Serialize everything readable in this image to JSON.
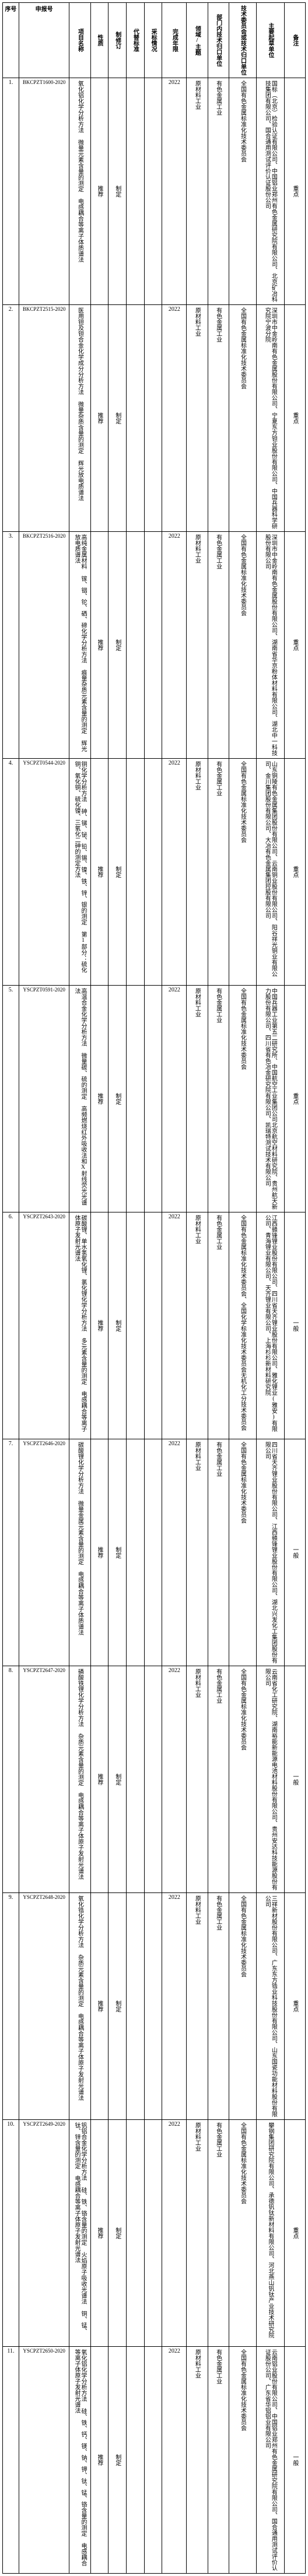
{
  "headers": {
    "seq": "序号",
    "code": "申报号",
    "name": "项目名称",
    "nature": "性质",
    "type": "制修订",
    "replace": "代替标准",
    "adopt": "采标情况",
    "year": "完成年限",
    "domain": "领域/主题",
    "dept": "部门内技术归口单位",
    "tech": "技术委员会或技术归口单位",
    "unit": "主要起草单位",
    "note": "备注"
  },
  "rows": [
    {
      "seq": "1.",
      "code": "BKCPZT1600-2020",
      "name": "氧化铝化学分析方法 微量元素含量的测定 电感耦合等离子体质谱法",
      "nature": "推荐",
      "type": "制定",
      "replace": "",
      "adopt": "",
      "year": "2022",
      "domain": "原材料工业",
      "dept": "有色金属工业",
      "tech": "全国有色金属标准化技术委员会",
      "unit": "国标（北京）检验认证有限公司、中国铝业郑州有色金属研究院有限公司、北京矿冶科技集团有限公司、国合通用测试评价认证股份公司",
      "note": "重点"
    },
    {
      "seq": "2.",
      "code": "BKCPZT2515-2020",
      "name": "医用钽及钽合金化学成分分析方法 微量杂质含量的测定 辉光放电质谱法",
      "nature": "推荐",
      "type": "制定",
      "replace": "",
      "adopt": "",
      "year": "2022",
      "domain": "原材料工业",
      "dept": "有色金属工业",
      "tech": "全国有色金属标准化技术委员会",
      "unit": "深圳市中金岭南有色金属股份有限公司、宁夏东方钽业股份有限公司、中国兵器科学研究院宁波分院",
      "note": "重点"
    },
    {
      "seq": "3.",
      "code": "BKCPZT2516-2020",
      "name": "高纯金属材料 镓、铟、铊、硒、碲化学分析方法 痕量杂质元素含量的测定 辉光放电质谱法",
      "nature": "推荐",
      "type": "制定",
      "replace": "",
      "adopt": "",
      "year": "2022",
      "domain": "原材料工业",
      "dept": "有色金属工业",
      "tech": "全国有色金属标准化技术委员会",
      "unit": "深圳市中金岭南有色金属股份有限公司、湖南省华京粉体材料有限公司、湖北中一科技股份有限公司",
      "note": "重点"
    },
    {
      "seq": "4.",
      "code": "YSCPZT0544-2020",
      "name": "铜化学分析方法 砷、锑、铋、铅、锡、镍、铁、锌、银的测定 第1部分：硫化铜、氧化铜、硫化镍、三氧化二砷的测定方法",
      "nature": "推荐",
      "type": "制定",
      "replace": "",
      "adopt": "",
      "year": "2022",
      "domain": "原材料工业",
      "dept": "有色金属工业",
      "tech": "全国有色金属标准化技术委员会",
      "unit": "山东铜陵有色金属集团股份有限公司、云南铜业股份有限公司、阳谷祥光铜业有限公司、金川集团股份有限公司、大冶有色金属集团控股有限公司",
      "note": "重点"
    },
    {
      "seq": "5.",
      "code": "YSCPZT0591-2020",
      "name": "高温合金化学分析方法 微量碳、硫的测定 高频燃烧红外吸收法和X射线荧光光谱法",
      "nature": "推荐",
      "type": "制定",
      "replace": "",
      "adopt": "",
      "year": "2022",
      "domain": "原材料工业",
      "dept": "有色金属工业",
      "tech": "全国有色金属标准化技术委员会",
      "unit": "中国兵器工业第五二研究所、中国航空工业集团公司北京航空材料研究院、贵州航天新力股份有限公司、四川省有色冶金研究院有限公司、凯瑞特测试技术有限公司",
      "note": "重点"
    },
    {
      "seq": "6.",
      "code": "YSCPZT2643-2020",
      "name": "碳酸锂、单水氢氧化锂、氯化锂化学分析方法 多元素含量的测定 电感耦合等离子体原子发射光谱法",
      "nature": "推荐",
      "type": "制定",
      "replace": "",
      "adopt": "",
      "year": "2022",
      "domain": "原材料工业",
      "dept": "有色金属工业",
      "tech": "全国有色金属标准化技术委员会、全国化学标准化技术委员会无机化工分技术委员会",
      "unit": "江西赣锋锂业股份有限公司、四川省天齐锂业股份有限公司、雅化锂业(雅安)有限公司、青海锂业有限公司、天齐锂业有限公司、上海杉杉新材料研究院",
      "note": "一般"
    },
    {
      "seq": "7.",
      "code": "YSCPZT2646-2020",
      "name": "碳酸锂化学分析方法 微量金属元素含量的测定 电感耦合等离子体质谱法",
      "nature": "推荐",
      "type": "制定",
      "replace": "",
      "adopt": "",
      "year": "2022",
      "domain": "原材料工业",
      "dept": "有色金属工业",
      "tech": "全国有色金属标准化技术委员会",
      "unit": "四川省天齐锂业股份有限公司、江西赣锋锂业股份有限公司、湖北兴发化工集团股份有限公司",
      "note": "一般"
    },
    {
      "seq": "8.",
      "code": "YSCPZT2647-2020",
      "name": "磷酸铁锂化学分析方法 杂质元素含量的测定 电感耦合等离子体原子发射光谱法",
      "nature": "推荐",
      "type": "制定",
      "replace": "",
      "adopt": "",
      "year": "2022",
      "domain": "原材料工业",
      "dept": "有色金属工业",
      "tech": "全国有色金属标准化技术委员会",
      "unit": "云南省化工研究院、湖南裕能新能源电池材料股份有限公司、贵州安达科技能源股份有限公司",
      "note": "一般"
    },
    {
      "seq": "9.",
      "code": "YSCPZT2648-2020",
      "name": "氧化锆化学分析方法 杂质元素含量的测定 电感耦合等离子体原子发射光谱法",
      "nature": "推荐",
      "type": "制定",
      "replace": "",
      "adopt": "",
      "year": "2022",
      "domain": "原材料工业",
      "dept": "有色金属工业",
      "tech": "全国有色金属标准化技术委员会",
      "unit": "三祥新材股份有限公司、广东东方锆业科技股份有限公司、山东国瓷功能材料股份有限公司",
      "note": "重点"
    },
    {
      "seq": "10.",
      "code": "YSCPZT2649-2020",
      "name": "钒铝合金化学分析方法 硅、铁、铬含量的测定 火焰原子吸收光谱法 铜、锰、钛、锌含量的测定 电感耦合等离子体原子发射光谱法",
      "nature": "推荐",
      "type": "制定",
      "replace": "",
      "adopt": "",
      "year": "2022",
      "domain": "原材料工业",
      "dept": "有色金属工业",
      "tech": "全国有色金属标准化技术委员会",
      "unit": "攀钢集团研究院有限公司、承德钒钛新材料有限公司、河北燕山钒钛产业技术研究院",
      "note": "重点"
    },
    {
      "seq": "11.",
      "code": "YSCPZT2650-2020",
      "name": "氧化铝化学分析方法 硅、铁、钙、镁、钠、钾、钛、锰、铬含量的测定 电感耦合等离子体原子发射光谱法",
      "nature": "推荐",
      "type": "制定",
      "replace": "",
      "adopt": "",
      "year": "2022",
      "domain": "原材料工业",
      "dept": "有色金属工业",
      "tech": "全国有色金属标准化技术委员会",
      "unit": "云南铝业股份有限公司、中国铝业郑州有色金属研究院有限公司、国合通用测试评价认证股份公司、广东省华铝铝业有限公司",
      "note": "一般"
    }
  ]
}
